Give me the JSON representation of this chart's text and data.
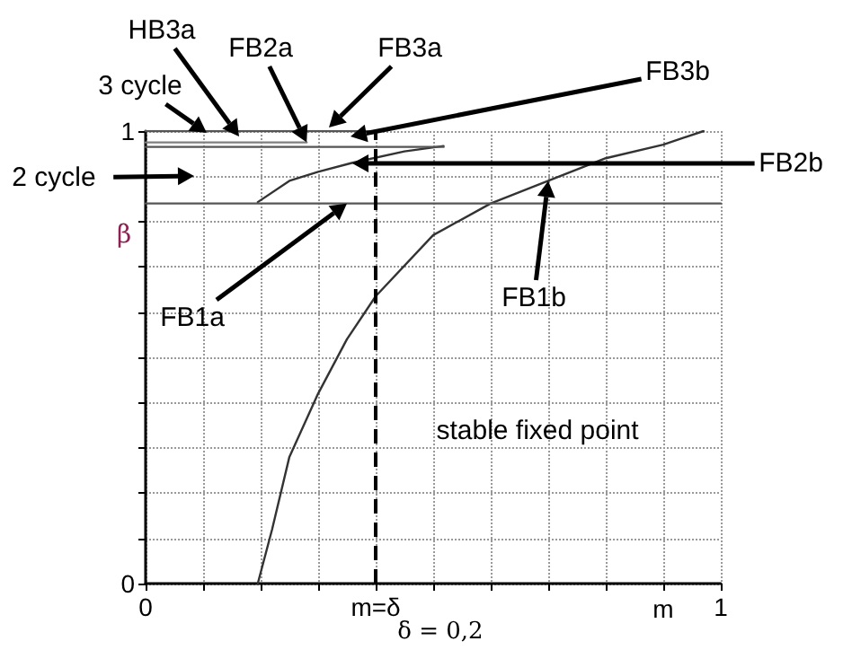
{
  "chart_data": {
    "type": "line",
    "xlabel": "m",
    "ylabel": "β",
    "xlim": [
      0,
      1
    ],
    "ylim": [
      0,
      1
    ],
    "xticks": [
      0,
      {
        "value": 0.1,
        "label": null
      },
      {
        "value": 0.2,
        "label": null
      },
      {
        "value": 0.3,
        "label": null
      },
      {
        "value": 0.4,
        "label": "m=δ"
      },
      {
        "value": 0.5,
        "label": null
      },
      {
        "value": 0.6,
        "label": null
      },
      {
        "value": 0.7,
        "label": null
      },
      {
        "value": 0.8,
        "label": null
      },
      {
        "value": 0.9,
        "label": null
      },
      1
    ],
    "yticks": [
      0,
      {
        "value": 0.1,
        "label": null
      },
      {
        "value": 0.2,
        "label": null
      },
      {
        "value": 0.3,
        "label": null
      },
      {
        "value": 0.4,
        "label": null
      },
      {
        "value": 0.5,
        "label": null
      },
      {
        "value": 0.6,
        "label": null
      },
      {
        "value": 0.7,
        "label": null
      },
      {
        "value": 0.8,
        "label": null
      },
      {
        "value": 0.9,
        "label": null
      },
      1
    ],
    "grid": true,
    "marker": "none",
    "line_style": "solid",
    "series": [
      {
        "color": "#333333",
        "x": [
          0.195,
          0.22,
          0.25,
          0.3,
          0.35,
          0.4,
          0.5,
          0.6,
          0.7,
          0.8,
          0.9,
          0.97
        ],
        "values": [
          0,
          0.12,
          0.28,
          0.42,
          0.54,
          0.635,
          0.77,
          0.84,
          0.89,
          0.94,
          0.97,
          1.0
        ]
      },
      {
        "color": "#333333",
        "x": [
          0.195,
          0.25,
          0.3,
          0.36,
          0.45,
          0.518
        ],
        "values": [
          0.843,
          0.89,
          0.91,
          0.93,
          0.955,
          0.967
        ]
      },
      {
        "color": "#555555",
        "x": [
          0,
          1
        ],
        "values": [
          0.84,
          0.84
        ]
      },
      {
        "color": "#555555",
        "x": [
          0,
          0.4
        ],
        "values": [
          1,
          1
        ]
      },
      {
        "color": "#808080",
        "x": [
          0,
          0.28
        ],
        "values": [
          0.975,
          0.975
        ]
      },
      {
        "color": "#555555",
        "x": [
          0,
          0.518
        ],
        "values": [
          0.965,
          0.965
        ]
      }
    ],
    "ref_lines": [
      {
        "axis": "x",
        "value": 0.4,
        "line_style": "dashed",
        "color": "#000000"
      }
    ],
    "annotations": [
      "HB3a",
      {
        "text": "FB2a",
        "x": 0.28,
        "y": 0.975
      },
      "FB3a",
      "FB3b",
      "3 cycle",
      "2 cycle",
      "FB2b",
      {
        "text": "FB1a",
        "x": 0.35,
        "y": 0.84
      },
      {
        "text": "FB1b",
        "x": 0.7,
        "y": 0.89
      },
      "stable fixed point",
      "δ = 0,2"
    ]
  }
}
